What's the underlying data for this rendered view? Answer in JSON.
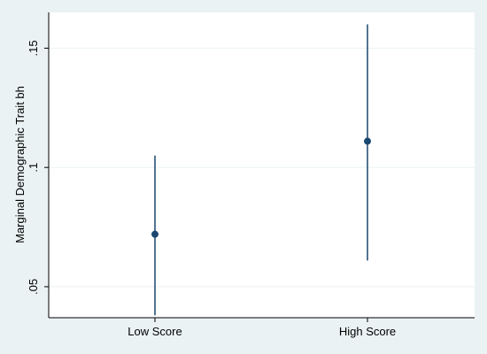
{
  "chart_data": {
    "type": "scatter",
    "title": "",
    "xlabel": "",
    "ylabel": "Marginal Demographic Trait bh",
    "categories": [
      "Low Score",
      "High Score"
    ],
    "values": [
      0.072,
      0.111
    ],
    "ci_lower": [
      0.038,
      0.061
    ],
    "ci_upper": [
      0.105,
      0.16
    ],
    "yticks": [
      0.05,
      0.1,
      0.15
    ],
    "ytick_labels": [
      ".05",
      ".1",
      ".15"
    ],
    "ylim": [
      0.037,
      0.165
    ],
    "grid": true,
    "legend": "none",
    "colors": {
      "marker": "#1A476F",
      "ci_line": "#1A476F",
      "grid": "#EAF2F3",
      "plot_background": "#FFFFFF",
      "outer_background": "#EAF2F3",
      "axis": "#000000"
    }
  }
}
